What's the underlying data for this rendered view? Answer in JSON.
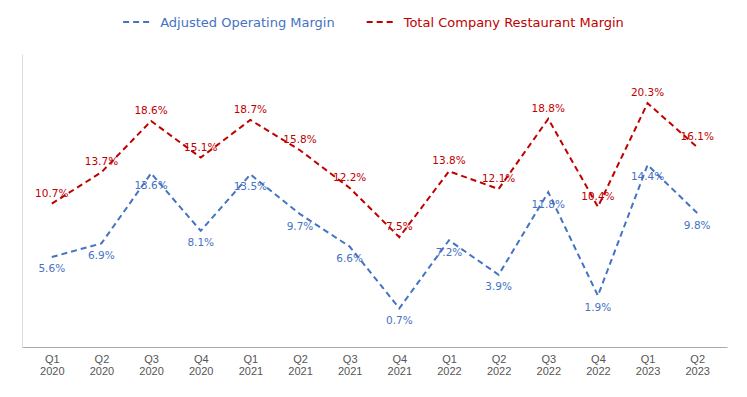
{
  "chart_data": {
    "type": "line",
    "categories": [
      "Q1\n2020",
      "Q2\n2020",
      "Q3\n2020",
      "Q4\n2020",
      "Q1\n2021",
      "Q2\n2021",
      "Q3\n2021",
      "Q4\n2021",
      "Q1\n2022",
      "Q2\n2022",
      "Q3\n2022",
      "Q4\n2022",
      "Q1\n2023",
      "Q2\n2023"
    ],
    "series": [
      {
        "name": "Adjusted Operating Margin",
        "color": "#4472c4",
        "line_style": "dashed",
        "values": [
          5.6,
          6.9,
          13.6,
          8.1,
          13.5,
          9.7,
          6.6,
          0.7,
          7.2,
          3.9,
          11.8,
          1.9,
          14.4,
          9.8
        ],
        "value_labels": [
          "5.6%",
          "6.9%",
          "13.6%",
          "8.1%",
          "13.5%",
          "9.7%",
          "6.6%",
          "0.7%",
          "7.2%",
          "3.9%",
          "11.8%",
          "1.9%",
          "14.4%",
          "9.8%"
        ]
      },
      {
        "name": "Total Company Restaurant Margin",
        "color": "#c00000",
        "line_style": "dashed",
        "values": [
          10.7,
          13.7,
          18.6,
          15.1,
          18.7,
          15.8,
          12.2,
          7.5,
          13.8,
          12.1,
          18.8,
          10.4,
          20.3,
          16.1
        ],
        "value_labels": [
          "10.7%",
          "13.7%",
          "18.6%",
          "15.1%",
          "18.7%",
          "15.8%",
          "12.2%",
          "7.5%",
          "13.8%",
          "12.1%",
          "18.8%",
          "10.4%",
          "20.3%",
          "16.1%"
        ]
      }
    ],
    "ylim": [
      -3,
      25
    ],
    "tick_labels": "x",
    "data_labels": true,
    "grid": false,
    "legend": "top"
  }
}
